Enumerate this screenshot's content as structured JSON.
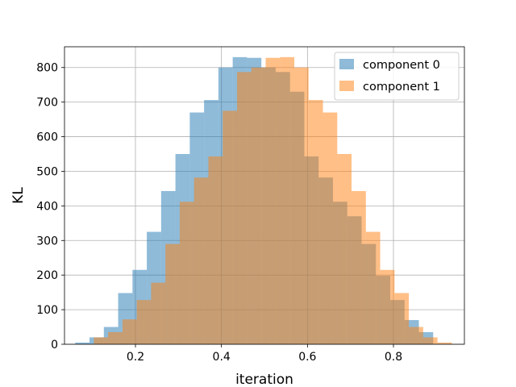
{
  "chart_data": {
    "type": "bar",
    "title": "",
    "xlabel": "iteration",
    "ylabel": "KL",
    "xlim": [
      0.035,
      0.965
    ],
    "ylim": [
      0,
      860
    ],
    "xticks": [
      0.2,
      0.4,
      0.6,
      0.8
    ],
    "yticks": [
      0,
      100,
      200,
      300,
      400,
      500,
      600,
      700,
      800
    ],
    "grid": true,
    "legend_position": "upper-right",
    "bin_width": 0.0333,
    "series": [
      {
        "name": "component 0",
        "color": "#1f77b4",
        "alpha": 0.5,
        "bin_starts": [
          0.0599,
          0.0932,
          0.1265,
          0.1598,
          0.1931,
          0.2264,
          0.2597,
          0.293,
          0.3263,
          0.3596,
          0.3929,
          0.4262,
          0.4595,
          0.4928,
          0.5261,
          0.5594,
          0.5927,
          0.626,
          0.6593,
          0.6926,
          0.7259,
          0.7592,
          0.7925,
          0.8258,
          0.8591
        ],
        "values": [
          5,
          20,
          50,
          148,
          215,
          325,
          443,
          550,
          670,
          706,
          800,
          830,
          828,
          800,
          787,
          730,
          543,
          482,
          412,
          370,
          290,
          198,
          128,
          70,
          35
        ]
      },
      {
        "name": "component 1",
        "color": "#ff7f0e",
        "alpha": 0.5,
        "bin_starts": [
          0.1032,
          0.1365,
          0.1698,
          0.2031,
          0.2364,
          0.2697,
          0.303,
          0.3363,
          0.3696,
          0.4029,
          0.4362,
          0.4695,
          0.5028,
          0.5361,
          0.5694,
          0.6027,
          0.636,
          0.6693,
          0.7026,
          0.7359,
          0.7692,
          0.8025,
          0.8358,
          0.8691,
          0.9024
        ],
        "values": [
          20,
          35,
          72,
          128,
          178,
          290,
          412,
          482,
          543,
          675,
          787,
          800,
          828,
          830,
          800,
          706,
          670,
          550,
          443,
          325,
          215,
          148,
          50,
          20,
          5
        ]
      }
    ]
  }
}
